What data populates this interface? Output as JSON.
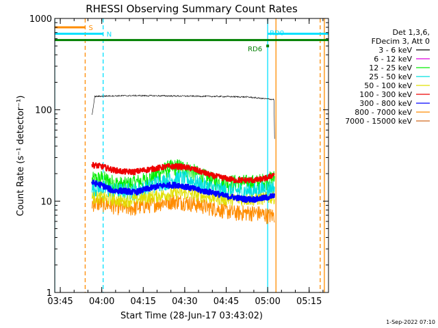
{
  "chart_data": {
    "type": "line",
    "title": "RHESSI Observing Summary Count Rates",
    "xlabel": "Start Time (28-Jun-17 03:43:02)",
    "ylabel": "Count Rate (s⁻¹ detector⁻¹)",
    "yscale": "log",
    "ylim": [
      1,
      1000
    ],
    "xlim_min": [
      0,
      99
    ],
    "x_unit": "minutes after 03:43:02",
    "y_ticks": [
      {
        "value": 1,
        "label": "1"
      },
      {
        "value": 10,
        "label": "10"
      },
      {
        "value": 100,
        "label": "100"
      },
      {
        "value": 1000,
        "label": "1000"
      }
    ],
    "x_ticks": [
      {
        "value": 2,
        "label": "03:45"
      },
      {
        "value": 17,
        "label": "04:00"
      },
      {
        "value": 32,
        "label": "04:15"
      },
      {
        "value": 47,
        "label": "04:30"
      },
      {
        "value": 62,
        "label": "04:45"
      },
      {
        "value": 77,
        "label": "05:00"
      },
      {
        "value": 92,
        "label": "05:15"
      }
    ],
    "legend_header": [
      "Det 1,3,6,",
      "FDecim 3, Att 0"
    ],
    "data_start": 13.5,
    "data_end": 79.5,
    "series": [
      {
        "name": "3 - 6 keV",
        "color": "#000000",
        "x": [
          13.5,
          14.5,
          20,
          30,
          40,
          50,
          60,
          70,
          76,
          79.3,
          79.5
        ],
        "y": [
          88,
          140,
          142,
          143,
          142,
          141,
          140,
          138,
          132,
          130,
          48
        ]
      },
      {
        "name": "6 - 12 keV",
        "color": "#dd00dd",
        "x": [],
        "y": []
      },
      {
        "name": "12 - 25 keV",
        "color": "#00ee00",
        "x": [
          13.5,
          17,
          21,
          25,
          29,
          33,
          37,
          41,
          45,
          49,
          53,
          57,
          61,
          65,
          69,
          73,
          77,
          79.5
        ],
        "y": [
          17,
          18,
          16,
          15,
          16,
          17,
          20,
          23,
          24,
          22,
          19,
          17,
          16,
          16,
          16,
          16,
          17,
          18
        ]
      },
      {
        "name": "25 - 50 keV",
        "color": "#00e0e0",
        "x": [
          13.5,
          17,
          21,
          25,
          29,
          33,
          37,
          41,
          45,
          49,
          53,
          57,
          61,
          65,
          69,
          73,
          77,
          79.5
        ],
        "y": [
          14,
          14,
          13,
          13,
          13,
          14,
          16,
          17,
          18,
          17,
          15,
          14,
          13,
          13,
          13,
          13,
          14,
          14
        ]
      },
      {
        "name": "50 - 100 keV",
        "color": "#e0e000",
        "x": [
          13.5,
          17,
          21,
          25,
          29,
          33,
          37,
          41,
          45,
          49,
          53,
          57,
          61,
          65,
          69,
          73,
          77,
          79.5
        ],
        "y": [
          11,
          11,
          10.5,
          10,
          10.5,
          11,
          11.5,
          12,
          12.5,
          12,
          11.5,
          11,
          10.5,
          10.5,
          10.5,
          10.5,
          11,
          11
        ]
      },
      {
        "name": "100 - 300 keV",
        "color": "#ee0000",
        "x": [
          13.5,
          17,
          21,
          25,
          29,
          33,
          37,
          41,
          45,
          49,
          53,
          57,
          61,
          65,
          69,
          73,
          77,
          79.5
        ],
        "y": [
          25,
          24,
          22,
          21,
          21,
          22,
          23,
          24,
          24,
          23,
          21,
          19,
          18,
          17,
          17,
          17,
          18,
          20
        ]
      },
      {
        "name": "300 - 800 keV",
        "color": "#0000ff",
        "x": [
          13.5,
          17,
          21,
          25,
          29,
          33,
          37,
          41,
          45,
          49,
          53,
          57,
          61,
          65,
          69,
          73,
          77,
          79.5
        ],
        "y": [
          16,
          15,
          13,
          13,
          12.5,
          13.5,
          14.5,
          15,
          15,
          14,
          13,
          12.5,
          11.5,
          11,
          10.5,
          10.5,
          11,
          11.5
        ]
      },
      {
        "name": "800 - 7000 keV",
        "color": "#ff8c00",
        "x": [
          13.5,
          17,
          21,
          25,
          29,
          33,
          37,
          41,
          45,
          49,
          53,
          57,
          61,
          65,
          69,
          73,
          77,
          79.5
        ],
        "y": [
          9.5,
          9.5,
          9,
          8.5,
          8.5,
          9,
          9.5,
          10,
          10,
          9.5,
          9,
          8.5,
          8,
          7.5,
          7.5,
          7.5,
          7,
          7
        ]
      },
      {
        "name": "7000 - 15000 keV",
        "color": "#d2691e",
        "x": [],
        "y": []
      }
    ],
    "state_bars": [
      {
        "label": "S",
        "color": "#ff8c00",
        "start": 0,
        "end": 11,
        "y": 800
      },
      {
        "label": "N",
        "color": "#00e0ff",
        "start": 0,
        "end": 17.5,
        "y": 680
      },
      {
        "label": "",
        "color": "#008000",
        "start": 0,
        "end": 99,
        "y": 580
      },
      {
        "label": "RD0",
        "color": "#00e0ff",
        "start": 77,
        "end": 99,
        "y": 680
      },
      {
        "label": "RD6",
        "color": "#008000",
        "start": 77,
        "end": 77,
        "y": 500
      }
    ],
    "vertical_markers": [
      {
        "color": "#00e0ff",
        "x": 0,
        "dashed": false
      },
      {
        "color": "#ff8c00",
        "x": 11,
        "dashed": true
      },
      {
        "color": "#00e0ff",
        "x": 17.5,
        "dashed": true
      },
      {
        "color": "#00e0ff",
        "x": 77,
        "dashed": false
      },
      {
        "color": "#ff8c00",
        "x": 80,
        "dashed": false
      },
      {
        "color": "#ff8c00",
        "x": 96,
        "dashed": true
      },
      {
        "color": "#ff8c00",
        "x": 97.5,
        "dashed": false
      }
    ]
  },
  "footer": {
    "timestamp": "1-Sep-2022 07:10"
  }
}
